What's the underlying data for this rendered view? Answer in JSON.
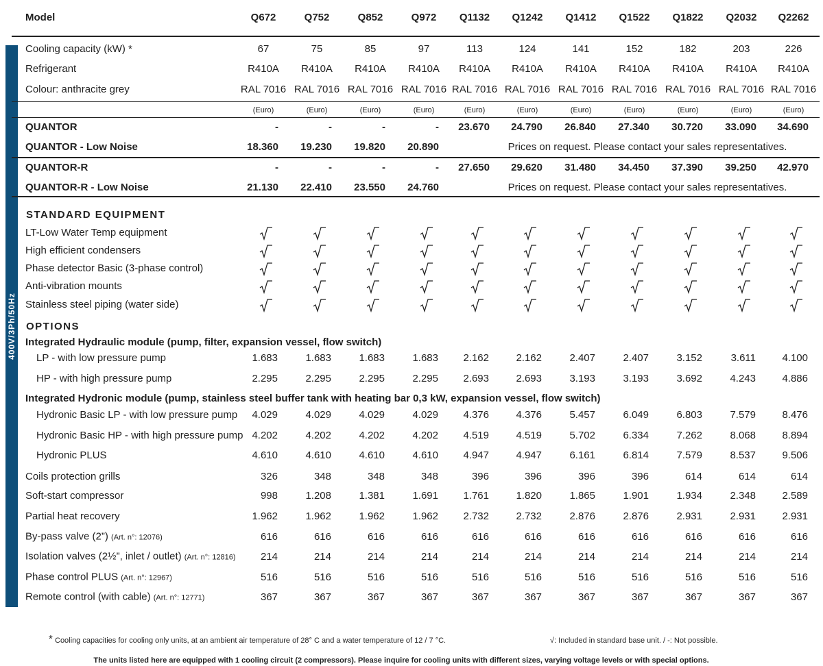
{
  "header": {
    "model_label": "Model",
    "models": [
      "Q672",
      "Q752",
      "Q852",
      "Q972",
      "Q1132",
      "Q1242",
      "Q1412",
      "Q1522",
      "Q1822",
      "Q2032",
      "Q2262"
    ]
  },
  "side_label": "400V/3Ph/50Hz",
  "specs": [
    {
      "label": "Cooling capacity (kW) *",
      "values": [
        "67",
        "75",
        "85",
        "97",
        "113",
        "124",
        "141",
        "152",
        "182",
        "203",
        "226"
      ]
    },
    {
      "label": "Refrigerant",
      "values": [
        "R410A",
        "R410A",
        "R410A",
        "R410A",
        "R410A",
        "R410A",
        "R410A",
        "R410A",
        "R410A",
        "R410A",
        "R410A"
      ]
    },
    {
      "label": "Colour: anthracite grey",
      "values": [
        "RAL 7016",
        "RAL 7016",
        "RAL 7016",
        "RAL 7016",
        "RAL 7016",
        "RAL 7016",
        "RAL 7016",
        "RAL 7016",
        "RAL 7016",
        "RAL 7016",
        "RAL 7016"
      ]
    }
  ],
  "currency": [
    "(Euro)",
    "(Euro)",
    "(Euro)",
    "(Euro)",
    "(Euro)",
    "(Euro)",
    "(Euro)",
    "(Euro)",
    "(Euro)",
    "(Euro)",
    "(Euro)"
  ],
  "prices": [
    {
      "label": "QUANTOR",
      "values": [
        "-",
        "-",
        "-",
        "-",
        "23.670",
        "24.790",
        "26.840",
        "27.340",
        "30.720",
        "33.090",
        "34.690"
      ]
    },
    {
      "label": "QUANTOR - Low Noise",
      "values": [
        "18.360",
        "19.230",
        "19.820",
        "20.890"
      ],
      "note": "Prices on request. Please contact your sales representatives."
    },
    {
      "label": "QUANTOR-R",
      "values": [
        "-",
        "-",
        "-",
        "-",
        "27.650",
        "29.620",
        "31.480",
        "34.450",
        "37.390",
        "39.250",
        "42.970"
      ]
    },
    {
      "label": "QUANTOR-R - Low Noise",
      "values": [
        "21.130",
        "22.410",
        "23.550",
        "24.760"
      ],
      "note": "Prices on request. Please contact your sales representatives."
    }
  ],
  "standard_equipment": {
    "title": "STANDARD EQUIPMENT",
    "items": [
      "LT-Low Water Temp equipment",
      "High efficient condensers",
      "Phase detector Basic (3-phase control)",
      "Anti-vibration mounts",
      "Stainless steel piping (water side)"
    ]
  },
  "options": {
    "title": "OPTIONS",
    "groups": [
      {
        "title": "Integrated Hydraulic module (pump, filter, expansion vessel, flow switch)",
        "rows": [
          {
            "label": "LP - with low pressure pump",
            "values": [
              "1.683",
              "1.683",
              "1.683",
              "1.683",
              "2.162",
              "2.162",
              "2.407",
              "2.407",
              "3.152",
              "3.611",
              "4.100"
            ]
          },
          {
            "label": "HP - with high pressure pump",
            "values": [
              "2.295",
              "2.295",
              "2.295",
              "2.295",
              "2.693",
              "2.693",
              "3.193",
              "3.193",
              "3.692",
              "4.243",
              "4.886"
            ]
          }
        ]
      },
      {
        "title": "Integrated Hydronic module (pump, stainless steel buffer tank with heating bar 0,3 kW, expansion vessel, flow switch)",
        "rows": [
          {
            "label": "Hydronic Basic LP - with low pressure pump",
            "values": [
              "4.029",
              "4.029",
              "4.029",
              "4.029",
              "4.376",
              "4.376",
              "5.457",
              "6.049",
              "6.803",
              "7.579",
              "8.476"
            ]
          },
          {
            "label": "Hydronic Basic HP - with high pressure pump",
            "values": [
              "4.202",
              "4.202",
              "4.202",
              "4.202",
              "4.519",
              "4.519",
              "5.702",
              "6.334",
              "7.262",
              "8.068",
              "8.894"
            ]
          },
          {
            "label": "Hydronic PLUS",
            "values": [
              "4.610",
              "4.610",
              "4.610",
              "4.610",
              "4.947",
              "4.947",
              "6.161",
              "6.814",
              "7.579",
              "8.537",
              "9.506"
            ]
          }
        ]
      }
    ],
    "rows": [
      {
        "label": "Coils protection grills",
        "values": [
          "326",
          "348",
          "348",
          "348",
          "396",
          "396",
          "396",
          "396",
          "614",
          "614",
          "614"
        ]
      },
      {
        "label": "Soft-start compressor",
        "values": [
          "998",
          "1.208",
          "1.381",
          "1.691",
          "1.761",
          "1.820",
          "1.865",
          "1.901",
          "1.934",
          "2.348",
          "2.589"
        ]
      },
      {
        "label": "Partial heat recovery",
        "values": [
          "1.962",
          "1.962",
          "1.962",
          "1.962",
          "2.732",
          "2.732",
          "2.876",
          "2.876",
          "2.931",
          "2.931",
          "2.931"
        ]
      },
      {
        "label": "By-pass valve (2”)",
        "article": "(Art. n°: 12076)",
        "values": [
          "616",
          "616",
          "616",
          "616",
          "616",
          "616",
          "616",
          "616",
          "616",
          "616",
          "616"
        ]
      },
      {
        "label": "Isolation valves (2½”, inlet / outlet)",
        "article": "(Art. n°: 12816)",
        "values": [
          "214",
          "214",
          "214",
          "214",
          "214",
          "214",
          "214",
          "214",
          "214",
          "214",
          "214"
        ]
      },
      {
        "label": "Phase control PLUS",
        "article": "(Art. n°: 12967)",
        "values": [
          "516",
          "516",
          "516",
          "516",
          "516",
          "516",
          "516",
          "516",
          "516",
          "516",
          "516"
        ]
      },
      {
        "label": "Remote control (with cable)",
        "article": "(Art. n°: 12771)",
        "values": [
          "367",
          "367",
          "367",
          "367",
          "367",
          "367",
          "367",
          "367",
          "367",
          "367",
          "367"
        ]
      }
    ]
  },
  "footer": {
    "footnote_mark": "*",
    "footnote": "Cooling capacities for cooling only units, at an ambient air temperature of 28° C and a water temperature of 12 / 7 °C.",
    "legend": "√: Included in standard base unit. / -: Not possible.",
    "notice": "The units listed here are equipped with 1 cooling circuit (2 compressors). Please inquire  for cooling units with different sizes, varying voltage levels or with special options."
  }
}
